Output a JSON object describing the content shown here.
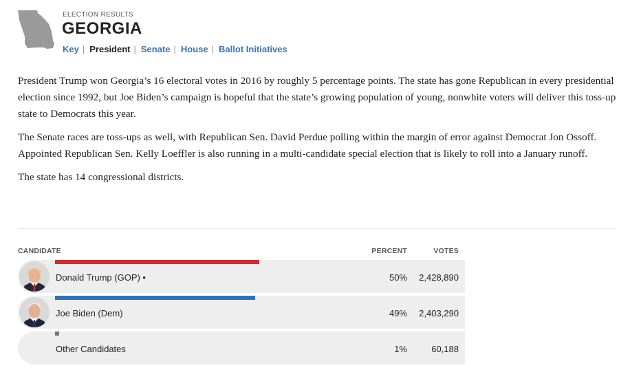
{
  "header": {
    "eyebrow": "ELECTION RESULTS",
    "state": "GEORGIA"
  },
  "nav": {
    "items": [
      {
        "label": "Key"
      },
      {
        "label": "President"
      },
      {
        "label": "Senate"
      },
      {
        "label": "House"
      },
      {
        "label": "Ballot Initiatives"
      }
    ],
    "separator": "|",
    "active": "President"
  },
  "intro": {
    "paragraphs": [
      "President Trump won Georgia’s 16 electoral votes in 2016 by roughly 5 percentage points. The state has gone Republican in every presidential election since 1992, but Joe Biden’s campaign is hopeful that the state’s growing population of young, nonwhite voters will deliver this toss-up state to Democrats this year.",
      "The Senate races are toss-ups as well, with Republican Sen. David Perdue polling within the margin of error against Democrat Jon Ossoff. Appointed Republican Sen. Kelly Loeffler is also running in a multi-candidate special election that is likely to roll into a January runoff.",
      "The state has 14 congressional districts."
    ]
  },
  "results": {
    "headers": {
      "candidate": "CANDIDATE",
      "percent": "PERCENT",
      "votes": "VOTES"
    },
    "rows": [
      {
        "name": "Donald Trump (GOP) •",
        "percent": "50%",
        "votes": "2,428,890",
        "share": 0.5,
        "color": "#d52b2e"
      },
      {
        "name": "Joe Biden (Dem)",
        "percent": "49%",
        "votes": "2,403,290",
        "share": 0.49,
        "color": "#2d72b8"
      },
      {
        "name": "Other Candidates",
        "percent": "1%",
        "votes": "60,188",
        "share": 0.01,
        "color": "#777777"
      }
    ]
  },
  "colors": {
    "link": "#3a73b5",
    "gop": "#d52b2e",
    "dem": "#2d72b8",
    "other": "#777777",
    "state_shape": "#9a9a9a"
  }
}
